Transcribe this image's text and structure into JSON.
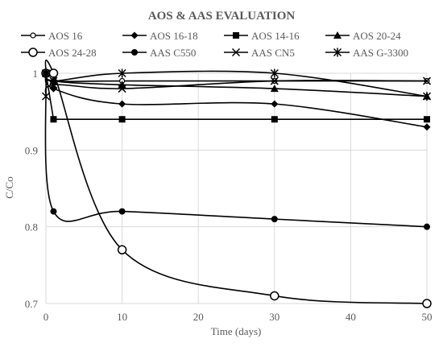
{
  "chart_data": {
    "type": "line",
    "title": "AOS & AAS EVALUATION",
    "xlabel": "Time (days)",
    "ylabel": "C/Co",
    "xlim": [
      0,
      50
    ],
    "ylim": [
      0.7,
      1.0
    ],
    "x_ticks": [
      "0",
      "10",
      "20",
      "30",
      "40",
      "50"
    ],
    "y_ticks": [
      "0.7",
      "0.8",
      "0.9",
      "1"
    ],
    "grid": true,
    "legend_position": "top",
    "line_color": "#000000",
    "series": [
      {
        "name": "AOS 16",
        "marker": "circle-open-small",
        "smooth": true,
        "points": [
          [
            0,
            1.0
          ],
          [
            1,
            0.99
          ],
          [
            10,
            0.99
          ],
          [
            30,
            0.99
          ],
          [
            50,
            0.99
          ]
        ]
      },
      {
        "name": "AOS 16-18",
        "marker": "diamond",
        "smooth": true,
        "points": [
          [
            0,
            1.0
          ],
          [
            1,
            0.98
          ],
          [
            10,
            0.96
          ],
          [
            30,
            0.96
          ],
          [
            50,
            0.93
          ]
        ]
      },
      {
        "name": "AOS 14-16",
        "marker": "square",
        "smooth": false,
        "points": [
          [
            0,
            1.0
          ],
          [
            1,
            0.94
          ],
          [
            10,
            0.94
          ],
          [
            30,
            0.94
          ],
          [
            50,
            0.94
          ]
        ]
      },
      {
        "name": "AOS 20-24",
        "marker": "triangle",
        "smooth": true,
        "points": [
          [
            0,
            1.0
          ],
          [
            1,
            0.99
          ],
          [
            10,
            0.985
          ],
          [
            30,
            0.98
          ],
          [
            50,
            0.97
          ]
        ]
      },
      {
        "name": "AOS 24-28",
        "marker": "circle-open-large",
        "smooth": true,
        "points": [
          [
            0,
            1.0
          ],
          [
            1,
            1.0
          ],
          [
            10,
            0.77
          ],
          [
            30,
            0.71
          ],
          [
            50,
            0.7
          ]
        ]
      },
      {
        "name": "AAS C550",
        "marker": "circle-filled",
        "smooth": true,
        "points": [
          [
            0,
            1.0
          ],
          [
            1,
            0.82
          ],
          [
            10,
            0.82
          ],
          [
            30,
            0.81
          ],
          [
            50,
            0.8
          ]
        ]
      },
      {
        "name": "AAS CN5",
        "marker": "x",
        "smooth": true,
        "points": [
          [
            0,
            0.97
          ],
          [
            1,
            0.985
          ],
          [
            10,
            0.98
          ],
          [
            30,
            0.99
          ],
          [
            50,
            0.99
          ]
        ]
      },
      {
        "name": "AAS G-3300",
        "marker": "asterisk",
        "smooth": true,
        "points": [
          [
            0,
            1.0
          ],
          [
            1,
            0.99
          ],
          [
            10,
            1.0
          ],
          [
            30,
            1.0
          ],
          [
            50,
            0.97
          ]
        ]
      }
    ]
  }
}
